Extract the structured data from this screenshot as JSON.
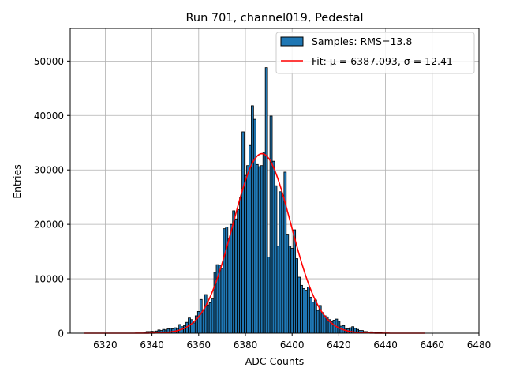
{
  "chart_data": {
    "type": "bar",
    "title": "Run 701, channel019, Pedestal",
    "xlabel": "ADC Counts",
    "ylabel": "Entries",
    "xlim": [
      6305,
      6480
    ],
    "ylim": [
      0,
      56000
    ],
    "xticks": [
      6320,
      6340,
      6360,
      6380,
      6400,
      6420,
      6440,
      6460,
      6480
    ],
    "yticks": [
      0,
      10000,
      20000,
      30000,
      40000,
      50000
    ],
    "grid": true,
    "legend_position": "top-right",
    "legend": [
      {
        "label": "Samples: RMS=13.8",
        "kind": "patch",
        "color": "#1f77b4"
      },
      {
        "label": "Fit: μ = 6387.093, σ = 12.41",
        "kind": "line",
        "color": "#ff0000"
      }
    ],
    "histogram": {
      "bin_width": 1,
      "color": "#1f77b4",
      "edge_color": "#000000",
      "bins": [
        {
          "x": 6337,
          "y": 200
        },
        {
          "x": 6338,
          "y": 300
        },
        {
          "x": 6339,
          "y": 300
        },
        {
          "x": 6340,
          "y": 350
        },
        {
          "x": 6341,
          "y": 300
        },
        {
          "x": 6342,
          "y": 400
        },
        {
          "x": 6343,
          "y": 600
        },
        {
          "x": 6344,
          "y": 500
        },
        {
          "x": 6345,
          "y": 700
        },
        {
          "x": 6346,
          "y": 600
        },
        {
          "x": 6347,
          "y": 800
        },
        {
          "x": 6348,
          "y": 900
        },
        {
          "x": 6349,
          "y": 800
        },
        {
          "x": 6350,
          "y": 1000
        },
        {
          "x": 6351,
          "y": 900
        },
        {
          "x": 6352,
          "y": 1600
        },
        {
          "x": 6353,
          "y": 1200
        },
        {
          "x": 6354,
          "y": 1400
        },
        {
          "x": 6355,
          "y": 2000
        },
        {
          "x": 6356,
          "y": 2800
        },
        {
          "x": 6357,
          "y": 2500
        },
        {
          "x": 6358,
          "y": 1900
        },
        {
          "x": 6359,
          "y": 3200
        },
        {
          "x": 6360,
          "y": 4000
        },
        {
          "x": 6361,
          "y": 6200
        },
        {
          "x": 6362,
          "y": 4300
        },
        {
          "x": 6363,
          "y": 7100
        },
        {
          "x": 6364,
          "y": 5200
        },
        {
          "x": 6365,
          "y": 5600
        },
        {
          "x": 6366,
          "y": 6300
        },
        {
          "x": 6367,
          "y": 11200
        },
        {
          "x": 6368,
          "y": 12600
        },
        {
          "x": 6369,
          "y": 12500
        },
        {
          "x": 6370,
          "y": 11900
        },
        {
          "x": 6371,
          "y": 19200
        },
        {
          "x": 6372,
          "y": 19500
        },
        {
          "x": 6373,
          "y": 17500
        },
        {
          "x": 6374,
          "y": 20000
        },
        {
          "x": 6375,
          "y": 22500
        },
        {
          "x": 6376,
          "y": 21000
        },
        {
          "x": 6377,
          "y": 22700
        },
        {
          "x": 6378,
          "y": 24900
        },
        {
          "x": 6379,
          "y": 37000
        },
        {
          "x": 6380,
          "y": 29000
        },
        {
          "x": 6381,
          "y": 30800
        },
        {
          "x": 6382,
          "y": 34500
        },
        {
          "x": 6383,
          "y": 41800
        },
        {
          "x": 6384,
          "y": 39300
        },
        {
          "x": 6385,
          "y": 31000
        },
        {
          "x": 6386,
          "y": 30600
        },
        {
          "x": 6387,
          "y": 30800
        },
        {
          "x": 6388,
          "y": 33300
        },
        {
          "x": 6389,
          "y": 48800
        },
        {
          "x": 6390,
          "y": 14000
        },
        {
          "x": 6391,
          "y": 39900
        },
        {
          "x": 6392,
          "y": 31600
        },
        {
          "x": 6393,
          "y": 27100
        },
        {
          "x": 6394,
          "y": 16000
        },
        {
          "x": 6395,
          "y": 26000
        },
        {
          "x": 6396,
          "y": 25200
        },
        {
          "x": 6397,
          "y": 29600
        },
        {
          "x": 6398,
          "y": 18200
        },
        {
          "x": 6399,
          "y": 16000
        },
        {
          "x": 6400,
          "y": 15600
        },
        {
          "x": 6401,
          "y": 19000
        },
        {
          "x": 6402,
          "y": 13700
        },
        {
          "x": 6403,
          "y": 10300
        },
        {
          "x": 6404,
          "y": 8800
        },
        {
          "x": 6405,
          "y": 8200
        },
        {
          "x": 6406,
          "y": 7900
        },
        {
          "x": 6407,
          "y": 8500
        },
        {
          "x": 6408,
          "y": 6600
        },
        {
          "x": 6409,
          "y": 5700
        },
        {
          "x": 6410,
          "y": 6100
        },
        {
          "x": 6411,
          "y": 4200
        },
        {
          "x": 6412,
          "y": 5100
        },
        {
          "x": 6413,
          "y": 3800
        },
        {
          "x": 6414,
          "y": 3200
        },
        {
          "x": 6415,
          "y": 3000
        },
        {
          "x": 6416,
          "y": 2500
        },
        {
          "x": 6417,
          "y": 2100
        },
        {
          "x": 6418,
          "y": 2400
        },
        {
          "x": 6419,
          "y": 2600
        },
        {
          "x": 6420,
          "y": 2200
        },
        {
          "x": 6421,
          "y": 1300
        },
        {
          "x": 6422,
          "y": 1400
        },
        {
          "x": 6423,
          "y": 900
        },
        {
          "x": 6424,
          "y": 800
        },
        {
          "x": 6425,
          "y": 1000
        },
        {
          "x": 6426,
          "y": 1200
        },
        {
          "x": 6427,
          "y": 900
        },
        {
          "x": 6428,
          "y": 700
        },
        {
          "x": 6429,
          "y": 500
        },
        {
          "x": 6430,
          "y": 500
        },
        {
          "x": 6431,
          "y": 300
        },
        {
          "x": 6432,
          "y": 300
        },
        {
          "x": 6433,
          "y": 200
        },
        {
          "x": 6434,
          "y": 250
        },
        {
          "x": 6435,
          "y": 200
        },
        {
          "x": 6436,
          "y": 150
        },
        {
          "x": 6437,
          "y": 100
        },
        {
          "x": 6438,
          "y": 100
        }
      ]
    },
    "fit": {
      "type": "gaussian",
      "mu": 6387.093,
      "sigma": 12.41,
      "amplitude": 33000,
      "x_range": [
        6311,
        6457
      ],
      "color": "#ff0000"
    }
  }
}
